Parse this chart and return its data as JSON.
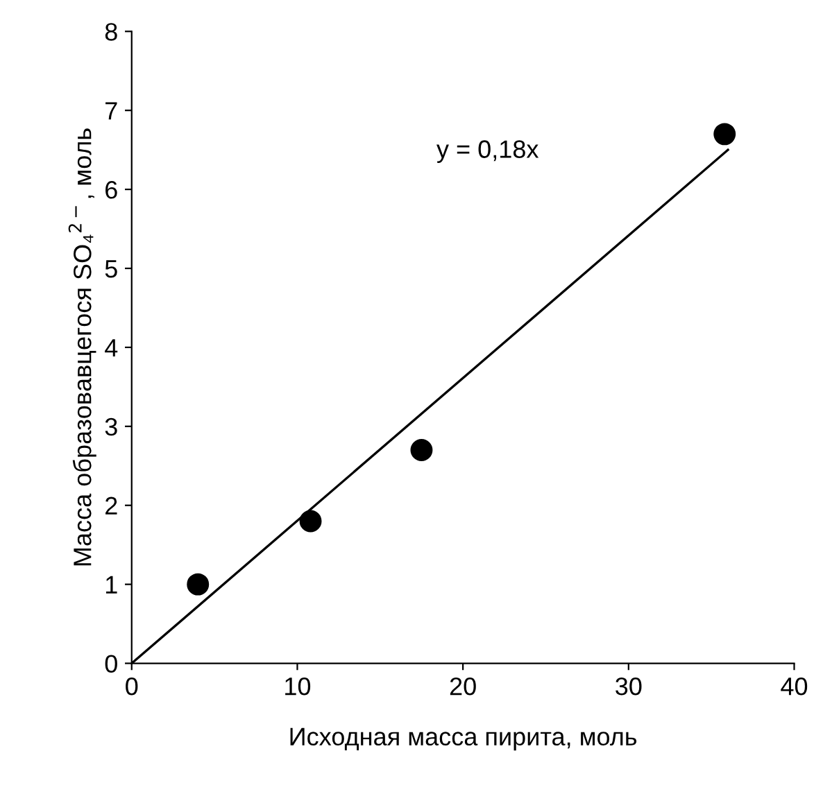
{
  "chart_data": {
    "type": "scatter",
    "xlabel": "Исходная масса пирита, моль",
    "ylabel": "Масса образовавцегося SO₄$^{2−}$, моль",
    "xlim": [
      0,
      40
    ],
    "ylim": [
      0,
      8
    ],
    "xticks": [
      0,
      10,
      20,
      30,
      40
    ],
    "yticks": [
      0,
      1,
      2,
      3,
      4,
      5,
      6,
      7,
      8
    ],
    "grid": false,
    "legend": false,
    "marker": "circle",
    "series": [
      {
        "color": "#000000",
        "x": [
          4,
          10.8,
          17.5,
          35.8
        ],
        "values": [
          1.0,
          1.8,
          2.7,
          6.7
        ]
      },
      {
        "type": "line",
        "color": "#000000",
        "x": [
          0,
          36
        ],
        "values": [
          0,
          6.5
        ],
        "marker": "none"
      }
    ],
    "annotations": [
      "y = 0,18x"
    ]
  }
}
